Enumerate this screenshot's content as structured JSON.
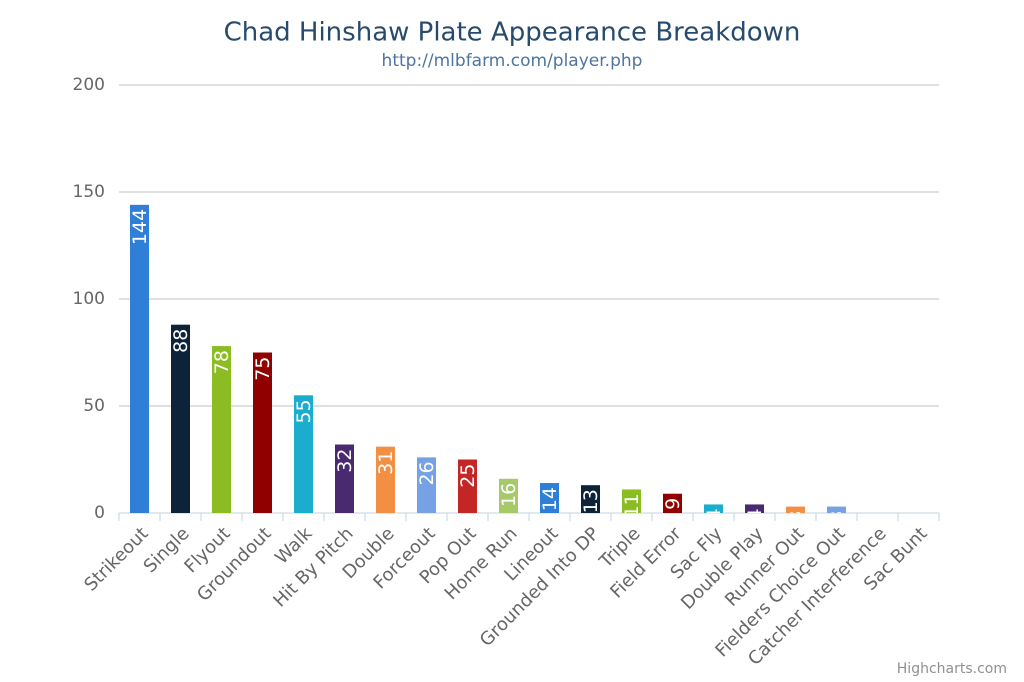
{
  "chart_data": {
    "type": "bar",
    "title": "Chad Hinshaw Plate Appearance Breakdown",
    "subtitle": "http://mlbfarm.com/player.php",
    "credits": "Highcharts.com",
    "categories": [
      "Strikeout",
      "Single",
      "Flyout",
      "Groundout",
      "Walk",
      "Hit By Pitch",
      "Double",
      "Forceout",
      "Pop Out",
      "Home Run",
      "Lineout",
      "Grounded Into DP",
      "Triple",
      "Field Error",
      "Sac Fly",
      "Double Play",
      "Runner Out",
      "Fielders Choice Out",
      "Catcher Interference",
      "Sac Bunt"
    ],
    "values": [
      144,
      88,
      78,
      75,
      55,
      32,
      31,
      26,
      25,
      16,
      14,
      13,
      11,
      9,
      4,
      4,
      3,
      3,
      0,
      0
    ],
    "colors": [
      "#2f7ed8",
      "#0d233a",
      "#8bbc21",
      "#910000",
      "#1aadce",
      "#492970",
      "#f28f43",
      "#77a1e5",
      "#c42525",
      "#a6c96a",
      "#2f7ed8",
      "#0d233a",
      "#8bbc21",
      "#910000",
      "#1aadce",
      "#492970",
      "#f28f43",
      "#77a1e5",
      "#c42525",
      "#a6c96a"
    ],
    "ylim": [
      0,
      200
    ],
    "yticks": [
      0,
      50,
      100,
      150,
      200
    ],
    "grid": true
  }
}
